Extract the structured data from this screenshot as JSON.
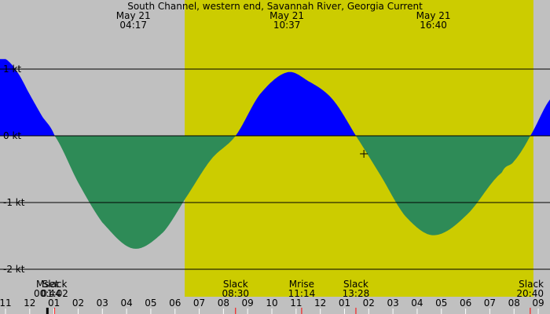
{
  "chart_data": {
    "type": "area",
    "title": "South Channel, western end, Savannah River, Georgia Current",
    "colors": {
      "background": "#c0c0c0",
      "daylight": "#cccc00",
      "flood": "#0000ff",
      "ebb": "#2e8b57",
      "line": "#000000",
      "moonset_tick": "#000000",
      "event_tick": "#ff0000"
    },
    "x_range_hours": [
      -1.0,
      27.8
    ],
    "ylim": [
      -2.0,
      1.0
    ],
    "y_ticks": [
      {
        "value": 1,
        "label": "1 kt"
      },
      {
        "value": 0,
        "label": "0 kt"
      },
      {
        "value": -1,
        "label": "-1 kt"
      },
      {
        "value": -2,
        "label": "-2 kt"
      }
    ],
    "x_ticks": [
      {
        "hour": -1,
        "label": "11"
      },
      {
        "hour": 0,
        "label": "12"
      },
      {
        "hour": 1,
        "label": "01"
      },
      {
        "hour": 2,
        "label": "02"
      },
      {
        "hour": 3,
        "label": "03"
      },
      {
        "hour": 4,
        "label": "04"
      },
      {
        "hour": 5,
        "label": "05"
      },
      {
        "hour": 6,
        "label": "06"
      },
      {
        "hour": 7,
        "label": "07"
      },
      {
        "hour": 8,
        "label": "08"
      },
      {
        "hour": 9,
        "label": "09"
      },
      {
        "hour": 10,
        "label": "10"
      },
      {
        "hour": 11,
        "label": "11"
      },
      {
        "hour": 12,
        "label": "12"
      },
      {
        "hour": 13,
        "label": "01"
      },
      {
        "hour": 14,
        "label": "02"
      },
      {
        "hour": 15,
        "label": "03"
      },
      {
        "hour": 16,
        "label": "04"
      },
      {
        "hour": 17,
        "label": "05"
      },
      {
        "hour": 18,
        "label": "06"
      },
      {
        "hour": 19,
        "label": "07"
      },
      {
        "hour": 20,
        "label": "08"
      },
      {
        "hour": 21,
        "label": "09"
      }
    ],
    "daylight_hours": [
      6.4,
      20.8
    ],
    "curve": [
      {
        "hour": -1.0,
        "value": 1.15
      },
      {
        "hour": -0.5,
        "value": 0.95
      },
      {
        "hour": 0.0,
        "value": 0.62
      },
      {
        "hour": 0.5,
        "value": 0.3
      },
      {
        "hour": 1.03,
        "value": 0.0
      },
      {
        "hour": 2.0,
        "value": -0.7
      },
      {
        "hour": 3.0,
        "value": -1.3
      },
      {
        "hour": 4.28,
        "value": -1.69
      },
      {
        "hour": 5.5,
        "value": -1.45
      },
      {
        "hour": 6.5,
        "value": -0.9
      },
      {
        "hour": 7.5,
        "value": -0.35
      },
      {
        "hour": 8.5,
        "value": 0.0
      },
      {
        "hour": 9.5,
        "value": 0.62
      },
      {
        "hour": 10.62,
        "value": 0.95
      },
      {
        "hour": 11.5,
        "value": 0.82
      },
      {
        "hour": 12.5,
        "value": 0.55
      },
      {
        "hour": 13.47,
        "value": 0.0
      },
      {
        "hour": 14.5,
        "value": -0.6
      },
      {
        "hour": 15.5,
        "value": -1.2
      },
      {
        "hour": 16.67,
        "value": -1.49
      },
      {
        "hour": 18.0,
        "value": -1.2
      },
      {
        "hour": 19.5,
        "value": -0.55
      },
      {
        "hour": 20.0,
        "value": -0.38
      },
      {
        "hour": 20.67,
        "value": 0.0
      },
      {
        "hour": 21.5,
        "value": 0.55
      },
      {
        "hour": 21.8,
        "value": 0.72
      }
    ],
    "top_annotations": [
      {
        "hour": 4.28,
        "date": "May 21",
        "time": "04:17"
      },
      {
        "hour": 10.62,
        "date": "May 21",
        "time": "10:37"
      },
      {
        "hour": 16.67,
        "date": "May 21",
        "time": "16:40"
      }
    ],
    "bottom_events": [
      {
        "hour": 0.73,
        "label": "Mset",
        "time": "00:44",
        "tick": "moonset"
      },
      {
        "hour": 1.03,
        "label": "Slack",
        "time": "01:02",
        "tick": "event"
      },
      {
        "hour": 8.5,
        "label": "Slack",
        "time": "08:30",
        "tick": "event"
      },
      {
        "hour": 11.23,
        "label": "Mrise",
        "time": "11:14",
        "tick": "event"
      },
      {
        "hour": 13.47,
        "label": "Slack",
        "time": "13:28",
        "tick": "event"
      },
      {
        "hour": 20.67,
        "label": "Slack",
        "time": "20:40",
        "tick": "event"
      }
    ],
    "cursor_marker": {
      "hour": 13.8,
      "value": -0.27
    }
  }
}
